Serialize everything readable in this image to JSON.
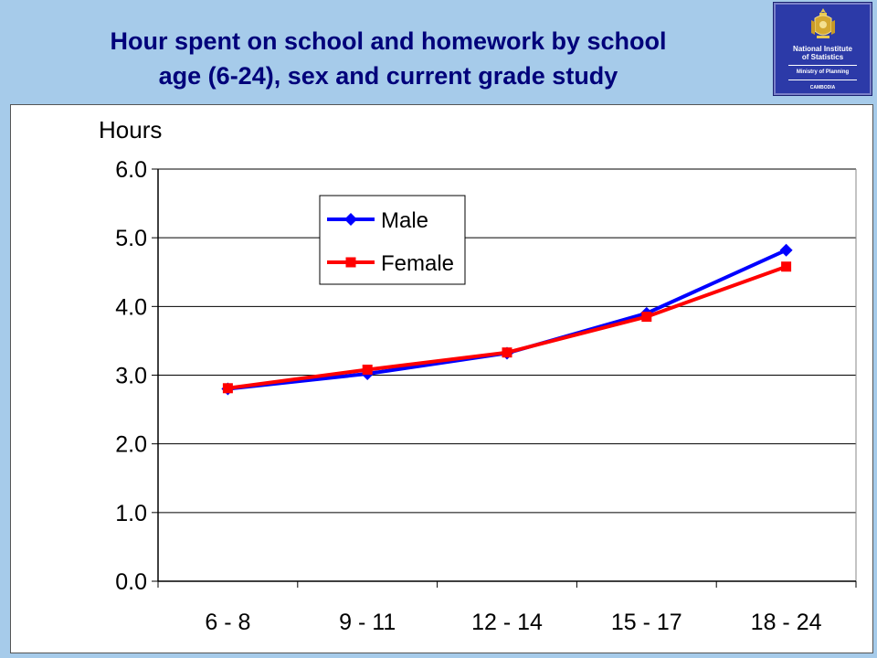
{
  "slide": {
    "title_line1": "Hour spent on school and homework by school",
    "title_line2": "age (6-24), sex and current grade study"
  },
  "logo": {
    "line1": "National Institute",
    "line2": "of Statistics",
    "line3": "Ministry of Planning",
    "line4": "CAMBODIA"
  },
  "colors": {
    "background": "#a6cbea",
    "title": "#00007a",
    "male": "#0000ff",
    "female": "#ff0000"
  },
  "chart_data": {
    "type": "line",
    "title": "Hour spent on school and homework by school age (6-24), sex and current grade study",
    "ylabel": "Hours",
    "xlabel": "",
    "categories": [
      "6 - 8",
      "9 - 11",
      "12 - 14",
      "15 - 17",
      "18 - 24"
    ],
    "ylim": [
      0,
      6
    ],
    "yticks": [
      "0.0",
      "1.0",
      "2.0",
      "3.0",
      "4.0",
      "5.0",
      "6.0"
    ],
    "grid": true,
    "legend": "upper-left",
    "series": [
      {
        "name": "Male",
        "marker": "diamond",
        "color": "#0000ff",
        "values": [
          2.8,
          3.02,
          3.32,
          3.9,
          4.82
        ]
      },
      {
        "name": "Female",
        "marker": "square",
        "color": "#ff0000",
        "values": [
          2.81,
          3.08,
          3.33,
          3.85,
          4.58
        ]
      }
    ]
  }
}
